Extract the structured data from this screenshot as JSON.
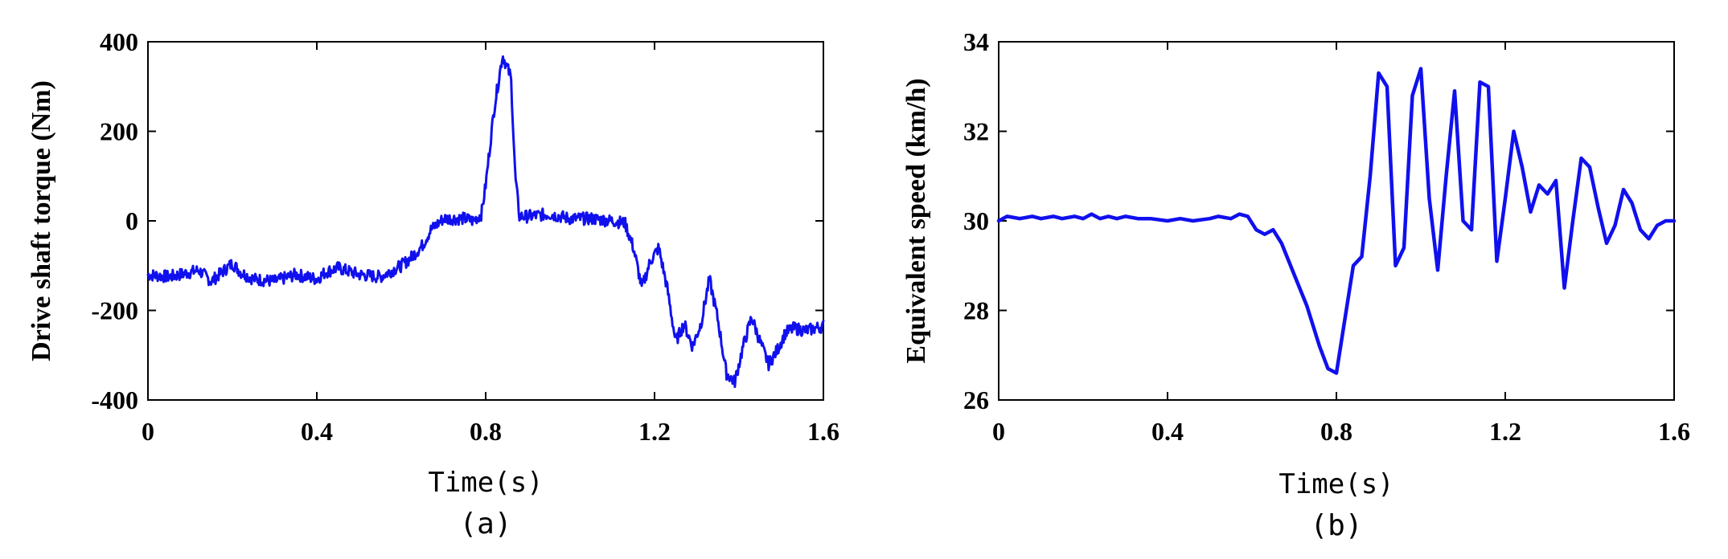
{
  "chart_data": [
    {
      "type": "line",
      "caption": "(a)",
      "xlabel": "Time(s)",
      "ylabel": "Drive shaft torque (Nm)",
      "xlim": [
        0,
        1.6
      ],
      "ylim": [
        -400,
        400
      ],
      "xticks": [
        "0",
        "0.4",
        "0.8",
        "1.2",
        "1.6"
      ],
      "yticks": [
        "-400",
        "-200",
        "0",
        "200",
        "400"
      ],
      "line_color": "#1010ee",
      "noisy": true,
      "series": [
        {
          "x": [
            0,
            0.05,
            0.1,
            0.12,
            0.15,
            0.2,
            0.22,
            0.25,
            0.3,
            0.35,
            0.4,
            0.42,
            0.45,
            0.5,
            0.55,
            0.6,
            0.62,
            0.65,
            0.67,
            0.7,
            0.72,
            0.75,
            0.77,
            0.79,
            0.8,
            0.82,
            0.84,
            0.86,
            0.87,
            0.88,
            0.9,
            0.95,
            1.0,
            1.05,
            1.1,
            1.13,
            1.15,
            1.17,
            1.19,
            1.21,
            1.23,
            1.25,
            1.27,
            1.29,
            1.31,
            1.33,
            1.35,
            1.37,
            1.39,
            1.41,
            1.43,
            1.45,
            1.47,
            1.49,
            1.51,
            1.53,
            1.56,
            1.6
          ],
          "y": [
            -120,
            -125,
            -115,
            -110,
            -135,
            -95,
            -115,
            -130,
            -135,
            -120,
            -130,
            -115,
            -105,
            -120,
            -125,
            -100,
            -85,
            -55,
            -20,
            5,
            5,
            5,
            0,
            15,
            80,
            250,
            370,
            320,
            100,
            10,
            10,
            15,
            5,
            5,
            0,
            -5,
            -60,
            -150,
            -90,
            -60,
            -150,
            -270,
            -230,
            -280,
            -230,
            -130,
            -220,
            -340,
            -360,
            -280,
            -215,
            -270,
            -320,
            -290,
            -250,
            -240,
            -245,
            -235
          ]
        }
      ]
    },
    {
      "type": "line",
      "caption": "(b)",
      "xlabel": "Time(s)",
      "ylabel": "Equivalent speed (km/h)",
      "xlim": [
        0,
        1.6
      ],
      "ylim": [
        26,
        34
      ],
      "xticks": [
        "0",
        "0.4",
        "0.8",
        "1.2",
        "1.6"
      ],
      "yticks": [
        "26",
        "28",
        "30",
        "32",
        "34"
      ],
      "line_color": "#1010ee",
      "noisy": false,
      "series": [
        {
          "x": [
            0,
            0.02,
            0.05,
            0.08,
            0.1,
            0.13,
            0.15,
            0.18,
            0.2,
            0.22,
            0.24,
            0.26,
            0.28,
            0.3,
            0.33,
            0.36,
            0.4,
            0.43,
            0.46,
            0.5,
            0.52,
            0.55,
            0.57,
            0.59,
            0.61,
            0.63,
            0.65,
            0.67,
            0.7,
            0.73,
            0.76,
            0.78,
            0.8,
            0.82,
            0.84,
            0.86,
            0.88,
            0.9,
            0.92,
            0.94,
            0.96,
            0.98,
            1.0,
            1.02,
            1.04,
            1.06,
            1.08,
            1.1,
            1.12,
            1.14,
            1.16,
            1.18,
            1.2,
            1.22,
            1.24,
            1.26,
            1.28,
            1.3,
            1.32,
            1.34,
            1.36,
            1.38,
            1.4,
            1.42,
            1.44,
            1.46,
            1.48,
            1.5,
            1.52,
            1.54,
            1.56,
            1.58,
            1.6
          ],
          "y": [
            30.0,
            30.1,
            30.05,
            30.1,
            30.05,
            30.1,
            30.05,
            30.1,
            30.05,
            30.15,
            30.05,
            30.1,
            30.05,
            30.1,
            30.05,
            30.05,
            30.0,
            30.05,
            30.0,
            30.05,
            30.1,
            30.05,
            30.15,
            30.1,
            29.8,
            29.7,
            29.8,
            29.5,
            28.8,
            28.1,
            27.2,
            26.7,
            26.6,
            27.8,
            29.0,
            29.2,
            31.0,
            33.3,
            33.0,
            29.0,
            29.4,
            32.8,
            33.4,
            30.5,
            28.9,
            31.0,
            32.9,
            30.0,
            29.8,
            33.1,
            33.0,
            29.1,
            30.5,
            32.0,
            31.2,
            30.2,
            30.8,
            30.6,
            30.9,
            28.5,
            30.0,
            31.4,
            31.2,
            30.3,
            29.5,
            29.9,
            30.7,
            30.4,
            29.8,
            29.6,
            29.9,
            30.0,
            30.0
          ]
        }
      ]
    }
  ]
}
